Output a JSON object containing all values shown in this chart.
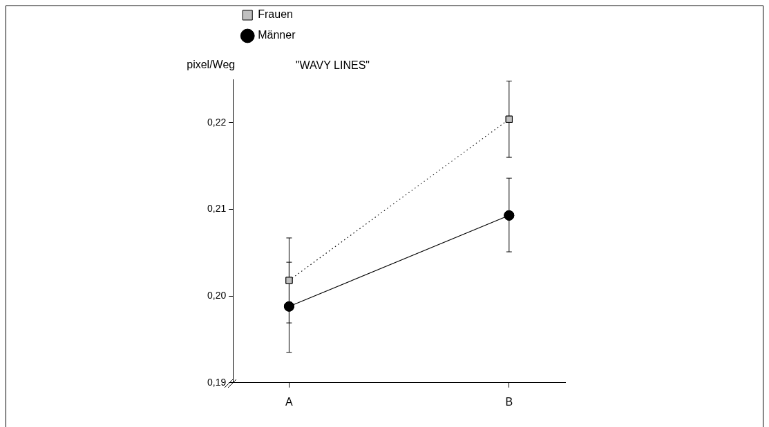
{
  "chart_data": {
    "type": "line",
    "title": "\"WAVY LINES\"",
    "ylabel": "pixel/Weg",
    "categories": [
      "A",
      "B"
    ],
    "series": [
      {
        "name": "Männer",
        "color": "#000000",
        "marker": "circle",
        "line_style": "solid",
        "values": [
          0.1988,
          0.2093
        ],
        "errors": [
          [
            0.1935,
            0.2039
          ],
          [
            0.2051,
            0.2136
          ]
        ]
      },
      {
        "name": "Frauen",
        "color": "#c0c0c0",
        "marker": "square",
        "line_style": "dotted",
        "values": [
          0.2018,
          0.2204
        ],
        "errors": [
          [
            0.1969,
            0.2067
          ],
          [
            0.216,
            0.2248
          ]
        ]
      }
    ],
    "ylim": [
      0.19,
      0.225
    ],
    "yticks": [
      {
        "value": 0.19,
        "label": "0,19"
      },
      {
        "value": 0.2,
        "label": "0,20"
      },
      {
        "value": 0.21,
        "label": "0,21"
      },
      {
        "value": 0.22,
        "label": "0,22"
      }
    ],
    "grid": false,
    "legend": "top left"
  }
}
